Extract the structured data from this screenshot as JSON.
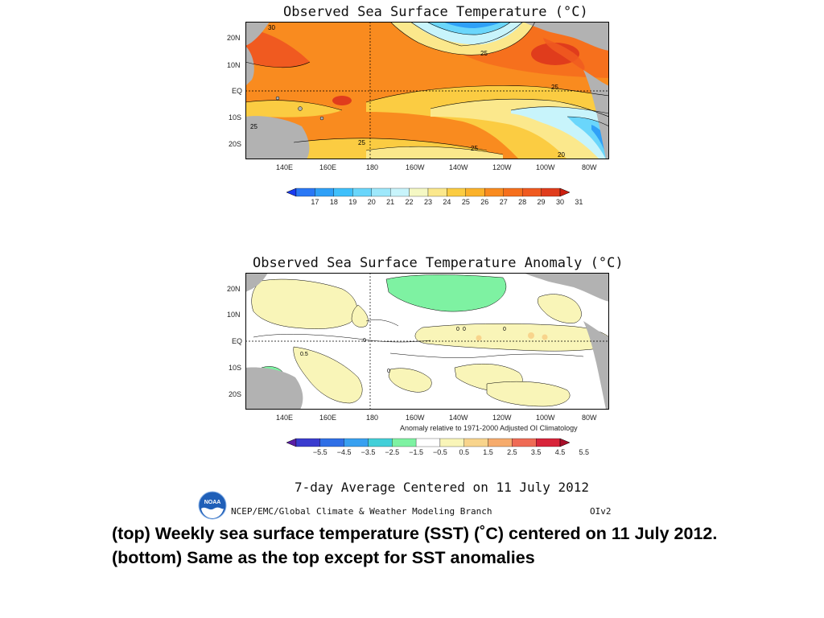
{
  "map_top": {
    "title": "Observed Sea Surface Temperature (°C)",
    "lat_labels": [
      "20N",
      "10N",
      "EQ",
      "10S",
      "20S"
    ],
    "lon_labels": [
      "140E",
      "160E",
      "180",
      "160W",
      "140W",
      "120W",
      "100W",
      "80W"
    ],
    "contour_labels": [
      "30",
      "25",
      "25",
      "25",
      "25",
      "20",
      "25"
    ],
    "colorbar": {
      "labels": [
        "17",
        "18",
        "19",
        "20",
        "21",
        "22",
        "23",
        "24",
        "25",
        "26",
        "27",
        "28",
        "29",
        "30",
        "31"
      ],
      "colors": [
        "#1a3cf0",
        "#2a78f5",
        "#2fa0f7",
        "#3fc0fb",
        "#6ad6fb",
        "#9ee8fb",
        "#c8f4fb",
        "#f5f8c4",
        "#fbe88c",
        "#fbcc42",
        "#fbb22a",
        "#f98b1f",
        "#f6701d",
        "#f05a20",
        "#e03c1c",
        "#cc2010"
      ]
    }
  },
  "map_bottom": {
    "title": "Observed Sea Surface Temperature Anomaly (°C)",
    "lat_labels": [
      "20N",
      "10N",
      "EQ",
      "10S",
      "20S"
    ],
    "lon_labels": [
      "140E",
      "160E",
      "180",
      "160W",
      "140W",
      "120W",
      "100W",
      "80W"
    ],
    "contour_labels": [
      "0",
      "0",
      "0.5",
      "0",
      "0",
      "0"
    ],
    "note": "Anomaly relative to 1971-2000 Adjusted OI Climatology",
    "colorbar": {
      "labels": [
        "−5.5",
        "−4.5",
        "−3.5",
        "−2.5",
        "−1.5",
        "−0.5",
        "0.5",
        "1.5",
        "2.5",
        "3.5",
        "4.5",
        "5.5"
      ],
      "colors": [
        "#5a1ea6",
        "#3a3ccf",
        "#2f6fe6",
        "#38a0f0",
        "#42cfd8",
        "#7ef2a2",
        "#ffffff",
        "#f9f5b8",
        "#f8d48c",
        "#f6ab6c",
        "#ef6b55",
        "#d8243a",
        "#a80f2a"
      ]
    }
  },
  "footer": {
    "period": "7-day Average Centered on 11 July 2012",
    "credit": "NCEP/EMC/Global Climate & Weather Modeling Branch",
    "analysis": "OIv2",
    "logo_text": "NOAA"
  },
  "caption": "(top) Weekly sea surface temperature (SST) (˚C) centered on 11 July 2012. (bottom) Same as the top except for SST anomalies"
}
